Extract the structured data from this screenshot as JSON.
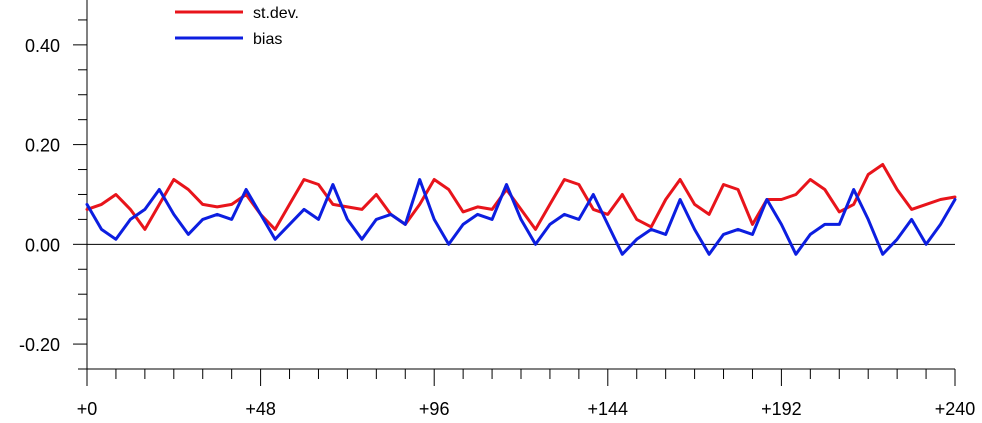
{
  "chart_data": {
    "type": "line",
    "title": "",
    "xlabel": "",
    "ylabel": "",
    "xlim": [
      0,
      240
    ],
    "ylim": [
      -0.25,
      0.5
    ],
    "x_ticks": [
      0,
      48,
      96,
      144,
      192,
      240
    ],
    "x_tick_labels": [
      "+0",
      "+48",
      "+96",
      "+144",
      "+192",
      "+240"
    ],
    "y_ticks": [
      -0.2,
      0.0,
      0.2,
      0.4
    ],
    "y_tick_labels": [
      "-0.20",
      "0.00",
      "0.20",
      "0.40"
    ],
    "zero_line": true,
    "grid": false,
    "legend_position": "top-left",
    "series": [
      {
        "name": "st.dev.",
        "color": "#e8141b",
        "x": [
          0,
          4,
          8,
          12,
          16,
          20,
          24,
          28,
          32,
          36,
          40,
          44,
          48,
          52,
          56,
          60,
          64,
          68,
          72,
          76,
          80,
          84,
          88,
          92,
          96,
          100,
          104,
          108,
          112,
          116,
          120,
          124,
          128,
          132,
          136,
          140,
          144,
          148,
          152,
          156,
          160,
          164,
          168,
          172,
          176,
          180,
          184,
          188,
          192,
          196,
          200,
          204,
          208,
          212,
          216,
          220,
          224,
          228,
          232,
          236,
          240
        ],
        "values": [
          0.07,
          0.08,
          0.1,
          0.07,
          0.03,
          0.08,
          0.13,
          0.11,
          0.08,
          0.075,
          0.08,
          0.1,
          0.06,
          0.03,
          0.08,
          0.13,
          0.12,
          0.08,
          0.075,
          0.07,
          0.1,
          0.06,
          0.04,
          0.08,
          0.13,
          0.11,
          0.065,
          0.075,
          0.07,
          0.11,
          0.07,
          0.03,
          0.08,
          0.13,
          0.12,
          0.07,
          0.06,
          0.1,
          0.05,
          0.035,
          0.09,
          0.13,
          0.08,
          0.06,
          0.12,
          0.11,
          0.04,
          0.09,
          0.09,
          0.1,
          0.13,
          0.11,
          0.065,
          0.08,
          0.14,
          0.16,
          0.11,
          0.07,
          0.08,
          0.09,
          0.095
        ]
      },
      {
        "name": "bias",
        "color": "#0c1ee0",
        "x": [
          0,
          4,
          8,
          12,
          16,
          20,
          24,
          28,
          32,
          36,
          40,
          44,
          48,
          52,
          56,
          60,
          64,
          68,
          72,
          76,
          80,
          84,
          88,
          92,
          96,
          100,
          104,
          108,
          112,
          116,
          120,
          124,
          128,
          132,
          136,
          140,
          144,
          148,
          152,
          156,
          160,
          164,
          168,
          172,
          176,
          180,
          184,
          188,
          192,
          196,
          200,
          204,
          208,
          212,
          216,
          220,
          224,
          228,
          232,
          236,
          240
        ],
        "values": [
          0.08,
          0.03,
          0.01,
          0.05,
          0.07,
          0.11,
          0.06,
          0.02,
          0.05,
          0.06,
          0.05,
          0.11,
          0.06,
          0.01,
          0.04,
          0.07,
          0.05,
          0.12,
          0.05,
          0.01,
          0.05,
          0.06,
          0.04,
          0.13,
          0.05,
          0.0,
          0.04,
          0.06,
          0.05,
          0.12,
          0.05,
          0.0,
          0.04,
          0.06,
          0.05,
          0.1,
          0.04,
          -0.02,
          0.01,
          0.03,
          0.02,
          0.09,
          0.03,
          -0.02,
          0.02,
          0.03,
          0.02,
          0.09,
          0.04,
          -0.02,
          0.02,
          0.04,
          0.04,
          0.11,
          0.05,
          -0.02,
          0.01,
          0.05,
          0.0,
          0.04,
          0.09
        ]
      }
    ]
  }
}
